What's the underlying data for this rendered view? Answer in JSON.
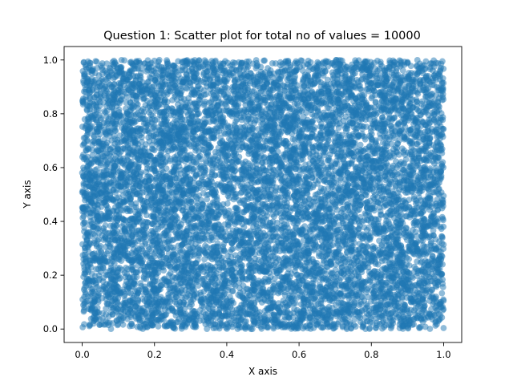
{
  "chart_data": {
    "type": "scatter",
    "title": "Question 1: Scatter plot for total no of values = 10000",
    "xlabel": "X axis",
    "ylabel": "Y axis",
    "xlim": [
      -0.05,
      1.05
    ],
    "ylim": [
      -0.05,
      1.05
    ],
    "x_ticks": [
      0.0,
      0.2,
      0.4,
      0.6,
      0.8,
      1.0
    ],
    "y_ticks": [
      0.0,
      0.2,
      0.4,
      0.6,
      0.8,
      1.0
    ],
    "x_tick_labels": [
      "0.0",
      "0.2",
      "0.4",
      "0.6",
      "0.8",
      "1.0"
    ],
    "y_tick_labels": [
      "0.0",
      "0.2",
      "0.4",
      "0.6",
      "0.8",
      "1.0"
    ],
    "grid": false,
    "legend": "none",
    "series": [
      {
        "n_points": 10000,
        "distribution": "uniform",
        "x_range": [
          0,
          1
        ],
        "y_range": [
          0,
          1
        ],
        "color": "#1f77b4",
        "alpha": 0.5
      }
    ]
  }
}
